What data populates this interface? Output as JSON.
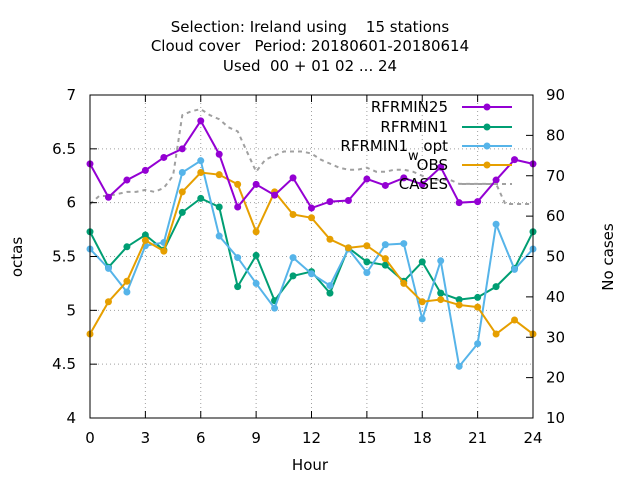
{
  "chart_data": {
    "type": "line",
    "title_lines": [
      "Selection: Ireland using    15 stations",
      "Cloud cover   Period: 20180601-20180614",
      "Used  00 + 01 02 ... 24"
    ],
    "xlabel": "Hour",
    "ylabel": "octas",
    "y2label": "No cases",
    "xlim": [
      0,
      24
    ],
    "ylim": [
      4,
      7
    ],
    "y2lim": [
      10,
      90
    ],
    "xticks": [
      0,
      3,
      6,
      9,
      12,
      15,
      18,
      21,
      24
    ],
    "yticks": [
      4,
      4.5,
      5,
      5.5,
      6,
      6.5,
      7
    ],
    "y2ticks": [
      10,
      20,
      30,
      40,
      50,
      60,
      70,
      80,
      90
    ],
    "grid": true,
    "legend_position": "top-right",
    "x": [
      0,
      1,
      2,
      3,
      4,
      5,
      6,
      7,
      8,
      9,
      10,
      11,
      12,
      13,
      14,
      15,
      16,
      17,
      18,
      19,
      20,
      21,
      22,
      23,
      24
    ],
    "series": [
      {
        "name": "RFRMIN25",
        "color": "#9400d3",
        "marker": "circle",
        "values": [
          6.36,
          6.05,
          6.21,
          6.3,
          6.42,
          6.5,
          6.76,
          6.45,
          5.96,
          6.17,
          6.07,
          6.23,
          5.95,
          6.01,
          6.02,
          6.22,
          6.16,
          6.23,
          6.17,
          6.33,
          6.0,
          6.01,
          6.21,
          6.4,
          6.36
        ]
      },
      {
        "name": "RFRMIN1",
        "color": "#009e73",
        "marker": "circle",
        "values": [
          5.73,
          5.4,
          5.59,
          5.7,
          5.56,
          5.91,
          6.04,
          5.96,
          5.22,
          5.51,
          5.09,
          5.32,
          5.36,
          5.16,
          5.58,
          5.45,
          5.42,
          5.27,
          5.45,
          5.16,
          5.1,
          5.12,
          5.22,
          5.39,
          5.73
        ]
      },
      {
        "name": "RFRMIN1",
        "name_subscript": "w",
        "name_suffix": " opt",
        "color": "#56b4e9",
        "marker": "circle",
        "values": [
          5.57,
          5.39,
          5.17,
          5.6,
          5.63,
          6.28,
          6.39,
          5.69,
          5.49,
          5.25,
          5.02,
          5.49,
          5.34,
          5.23,
          5.57,
          5.35,
          5.61,
          5.62,
          4.92,
          5.46,
          4.48,
          4.69,
          5.8,
          5.38,
          5.57
        ]
      },
      {
        "name": "OBS",
        "color": "#e69f00",
        "marker": "circle",
        "values": [
          4.78,
          5.08,
          5.27,
          5.65,
          5.55,
          6.1,
          6.28,
          6.26,
          6.17,
          5.73,
          6.1,
          5.89,
          5.86,
          5.66,
          5.58,
          5.6,
          5.48,
          5.25,
          5.08,
          5.1,
          5.05,
          5.03,
          4.78,
          4.91,
          4.78
        ]
      },
      {
        "name": "CASES",
        "color": "#a0a0a0",
        "axis": "y2",
        "dashed": true,
        "x": [
          0,
          0.5,
          1,
          1.5,
          2,
          2.5,
          3,
          3.5,
          4,
          4.5,
          5,
          5.5,
          6,
          6.5,
          7,
          7.5,
          8,
          8.5,
          9,
          9.5,
          10,
          10.5,
          11,
          11.5,
          12,
          12.5,
          13,
          13.5,
          14,
          14.5,
          15,
          15.5,
          16,
          16.5,
          17,
          17.5,
          18,
          18.5,
          19,
          19.5,
          20,
          20.5,
          21,
          21.5,
          22,
          22.5,
          23,
          23.5,
          24
        ],
        "values": [
          63,
          65,
          65,
          65.5,
          66,
          66,
          66.5,
          66,
          67,
          70,
          85,
          86,
          86.5,
          85,
          84,
          82,
          81,
          76,
          71,
          74,
          75,
          76,
          76,
          76,
          75.5,
          74,
          73,
          72,
          71.5,
          71.5,
          72,
          71,
          71,
          71.5,
          71.5,
          71,
          70,
          69,
          69,
          69,
          68,
          68,
          68,
          68,
          68,
          63,
          63,
          63,
          63
        ]
      }
    ]
  }
}
